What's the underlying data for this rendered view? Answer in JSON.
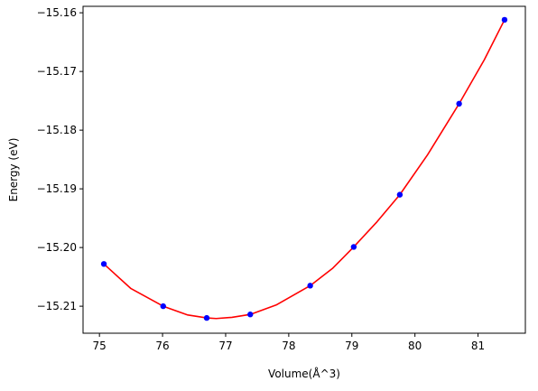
{
  "chart_data": {
    "type": "scatter",
    "title": "",
    "xlabel": "Volume(Å^3)",
    "ylabel": "Energy (eV)",
    "xlim": [
      74.74,
      81.75
    ],
    "ylim": [
      -15.2146,
      -15.1589
    ],
    "xticks": [
      75,
      76,
      77,
      78,
      79,
      80,
      81
    ],
    "yticks": [
      -15.21,
      -15.2,
      -15.19,
      -15.18,
      -15.17,
      -15.16
    ],
    "xtick_labels": [
      "75",
      "76",
      "77",
      "78",
      "79",
      "80",
      "81"
    ],
    "ytick_labels": [
      "−15.21",
      "−15.20",
      "−15.19",
      "−15.18",
      "−15.17",
      "−15.16"
    ],
    "grid": false,
    "series": [
      {
        "kind": "points",
        "color": "#0000ff",
        "x": [
          75.07,
          76.01,
          76.7,
          77.39,
          78.34,
          79.03,
          79.76,
          80.7,
          81.42
        ],
        "y": [
          -15.2028,
          -15.21,
          -15.212,
          -15.2114,
          -15.2065,
          -15.1999,
          -15.191,
          -15.1755,
          -15.1612
        ]
      },
      {
        "kind": "fit-curve",
        "color": "#ff0000",
        "x": [
          75.07,
          75.5,
          76.01,
          76.4,
          76.7,
          76.85,
          77.1,
          77.39,
          77.8,
          78.34,
          78.7,
          79.03,
          79.4,
          79.76,
          80.2,
          80.7,
          81.1,
          81.42
        ],
        "y": [
          -15.2028,
          -15.207,
          -15.21,
          -15.2115,
          -15.212,
          -15.2121,
          -15.2119,
          -15.2114,
          -15.2098,
          -15.2065,
          -15.2035,
          -15.1999,
          -15.1956,
          -15.191,
          -15.1842,
          -15.1755,
          -15.168,
          -15.1612
        ]
      }
    ]
  }
}
